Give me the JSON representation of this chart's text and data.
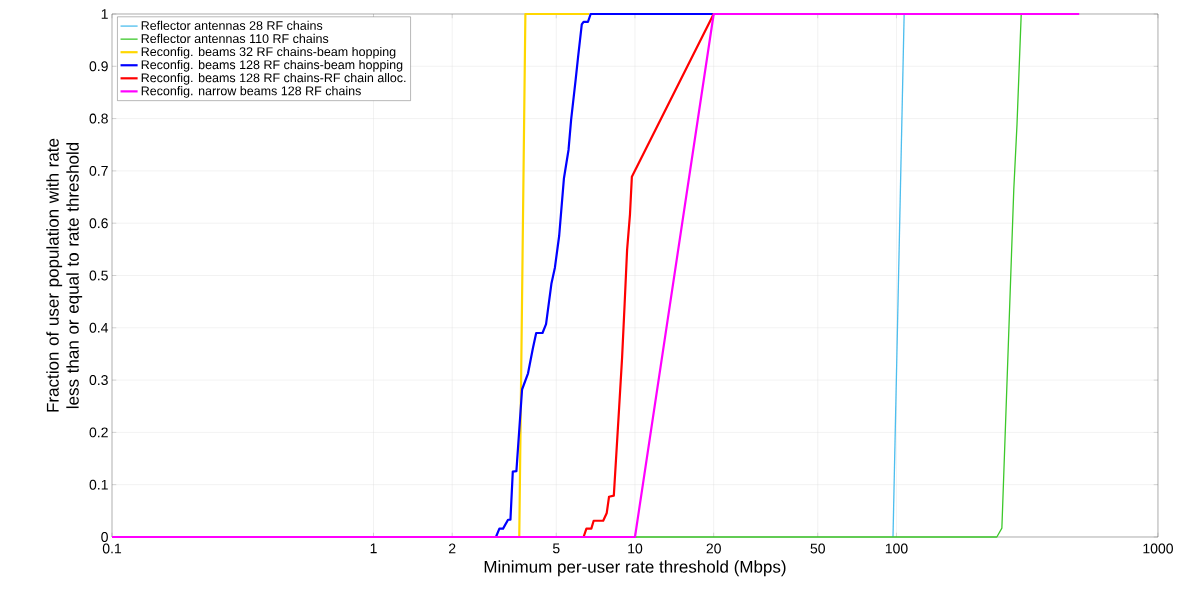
{
  "chart_data": {
    "type": "line",
    "xlabel": "Minimum per-user rate threshold (Mbps)",
    "ylabel": "Fraction of user population with rate less than or equal to rate threshold",
    "log": "x",
    "grid": true,
    "legend": "top left",
    "marker": "none",
    "line_style": "solid",
    "xlim": [
      0.1,
      1000
    ],
    "ylim": [
      0,
      1
    ],
    "xticks": [
      {
        "value": 0.1,
        "label": "0.1"
      },
      1,
      2,
      5,
      10,
      20,
      50,
      100,
      1000
    ],
    "yticks": [
      0,
      {
        "value": 0.1,
        "label": "0.1"
      },
      {
        "value": 0.2,
        "label": "0.2"
      },
      {
        "value": 0.3,
        "label": "0.3"
      },
      {
        "value": 0.4,
        "label": "0.4"
      },
      {
        "value": 0.5,
        "label": "0.5"
      },
      {
        "value": 0.6,
        "label": "0.6"
      },
      {
        "value": 0.7,
        "label": "0.7"
      },
      {
        "value": 0.8,
        "label": "0.8"
      },
      {
        "value": 0.9,
        "label": "0.9"
      },
      1
    ],
    "series": [
      {
        "name": "Reflector antennas 28 RF chains",
        "color": "#4dbeee",
        "x": [
          97,
          107
        ],
        "values": [
          0,
          1
        ]
      },
      {
        "name": "Reflector antennas 110 RF chains",
        "color": "#3cc82a",
        "x": [
          0.1,
          242,
          253,
          281,
          289,
          300
        ],
        "values": [
          0,
          0,
          0.017,
          0.665,
          0.788,
          1
        ]
      },
      {
        "name": "Reconfig. beams 32 RF chains-beam hopping",
        "color": "#ffd700",
        "x": [
          0.1,
          3.61,
          3.81,
          6.67
        ],
        "values": [
          0,
          0,
          1,
          1
        ]
      },
      {
        "name": "Reconfig. beams 128 RF chains-beam hopping",
        "color": "#0000ff",
        "x": [
          0.1,
          2.94,
          3.03,
          3.13,
          3.27,
          3.34,
          3.41,
          3.52,
          3.7,
          3.9,
          4.07,
          4.19,
          4.43,
          4.57,
          4.79,
          4.94,
          5.13,
          5.35,
          5.57,
          5.7,
          5.93,
          6.06,
          6.26,
          6.36,
          6.61,
          6.77,
          20
        ],
        "values": [
          0,
          0,
          0.016,
          0.016,
          0.033,
          0.033,
          0.125,
          0.126,
          0.282,
          0.313,
          0.361,
          0.39,
          0.39,
          0.407,
          0.484,
          0.515,
          0.576,
          0.686,
          0.74,
          0.798,
          0.874,
          0.918,
          0.98,
          0.985,
          0.985,
          1,
          1
        ]
      },
      {
        "name": "Reconfig. beams 128 RF chains-RF chain alloc.",
        "color": "#ff0000",
        "x": [
          0.1,
          6.36,
          6.52,
          6.81,
          6.95,
          7.56,
          7.8,
          7.96,
          8.3,
          8.7,
          8.93,
          9.13,
          9.33,
          9.57,
          9.73,
          20
        ],
        "values": [
          0,
          0,
          0.016,
          0.016,
          0.031,
          0.031,
          0.046,
          0.077,
          0.079,
          0.248,
          0.344,
          0.446,
          0.549,
          0.617,
          0.689,
          1
        ]
      },
      {
        "name": "Reconfig. narrow beams 128 RF chains",
        "color": "#ff00ff",
        "x": [
          0.1,
          10,
          20,
          500
        ],
        "values": [
          0,
          0,
          1,
          1
        ]
      }
    ]
  }
}
